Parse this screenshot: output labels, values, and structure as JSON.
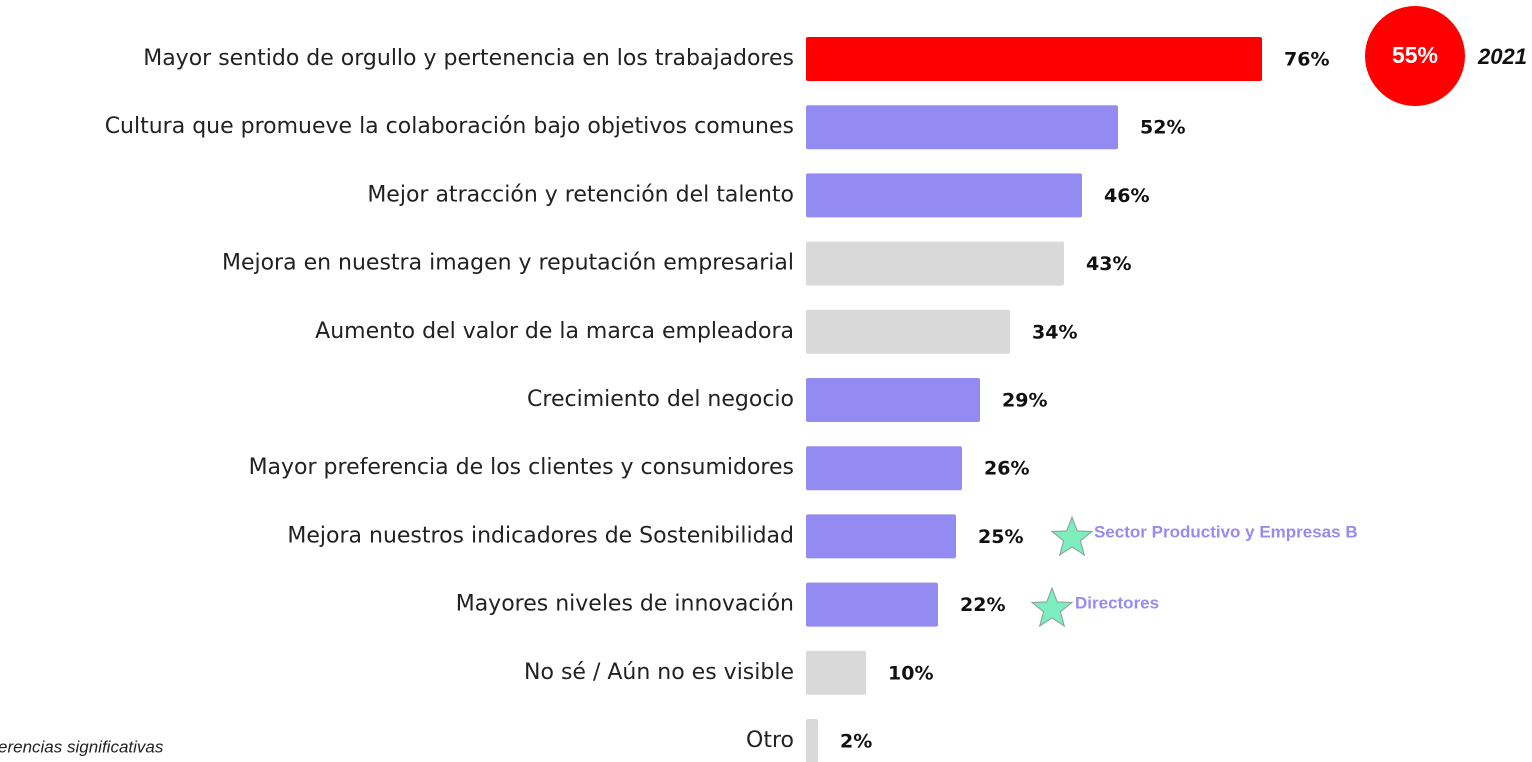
{
  "chart_data": {
    "type": "bar",
    "orientation": "horizontal",
    "categories": [
      "Mayor sentido de orgullo y pertenencia en los trabajadores",
      "Cultura que promueve la colaboración bajo objetivos comunes",
      "Mejor atracción y retención del talento",
      "Mejora en nuestra imagen y reputación empresarial",
      "Aumento del valor de la marca empleadora",
      "Crecimiento del negocio",
      "Mayor preferencia de los clientes y consumidores",
      "Mejora nuestros indicadores de Sostenibilidad",
      "Mayores niveles de innovación",
      "No sé / Aún no es visible",
      "Otro"
    ],
    "values": [
      76,
      52,
      46,
      43,
      34,
      29,
      26,
      25,
      22,
      10,
      2
    ],
    "value_labels": [
      "76%",
      "52%",
      "46%",
      "43%",
      "34%",
      "29%",
      "26%",
      "25%",
      "22%",
      "10%",
      "2%"
    ],
    "colors": [
      "#ff0000",
      "#948bf2",
      "#948bf2",
      "#d9d9d9",
      "#d9d9d9",
      "#948bf2",
      "#948bf2",
      "#948bf2",
      "#948bf2",
      "#d9d9d9",
      "#d9d9d9"
    ],
    "comparison": {
      "value_label": "55%",
      "year": "2021",
      "color": "#ff0000"
    },
    "annotations": [
      "Sector Productivo y Empresas B",
      "Directores"
    ],
    "footnote": "erencias significativas"
  }
}
